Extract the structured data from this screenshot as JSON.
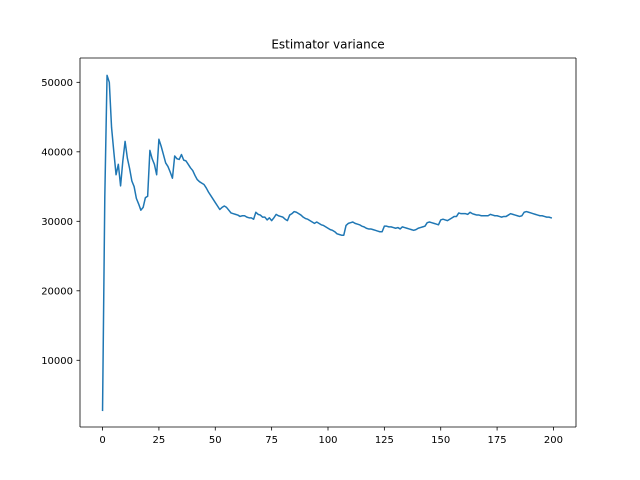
{
  "chart_data": {
    "type": "line",
    "title": "Estimator variance",
    "xlabel": "",
    "ylabel": "",
    "xlim": [
      -10,
      210
    ],
    "ylim": [
      400,
      53500
    ],
    "x_ticks": [
      0,
      25,
      50,
      75,
      100,
      125,
      150,
      175,
      200
    ],
    "x_tick_labels": [
      "0",
      "25",
      "50",
      "75",
      "100",
      "125",
      "150",
      "175",
      "200"
    ],
    "y_ticks": [
      10000,
      20000,
      30000,
      40000,
      50000
    ],
    "y_tick_labels": [
      "10000",
      "20000",
      "30000",
      "40000",
      "50000"
    ],
    "grid": false,
    "legend": "none",
    "series": [
      {
        "color": "#1f77b4",
        "x": [
          0,
          1,
          2,
          3,
          4,
          5,
          6,
          7,
          8,
          9,
          10,
          11,
          12,
          13,
          14,
          15,
          16,
          17,
          18,
          19,
          20,
          21,
          22,
          23,
          24,
          25,
          26,
          27,
          28,
          29,
          30,
          31,
          32,
          33,
          34,
          35,
          36,
          37,
          38,
          39,
          40,
          41,
          42,
          43,
          44,
          45,
          46,
          47,
          48,
          49,
          50,
          51,
          52,
          53,
          54,
          55,
          56,
          57,
          58,
          59,
          60,
          61,
          62,
          63,
          64,
          65,
          66,
          67,
          68,
          69,
          70,
          71,
          72,
          73,
          74,
          75,
          76,
          77,
          78,
          79,
          80,
          81,
          82,
          83,
          84,
          85,
          86,
          87,
          88,
          89,
          90,
          91,
          92,
          93,
          94,
          95,
          96,
          97,
          98,
          99,
          100,
          101,
          102,
          103,
          104,
          105,
          106,
          107,
          108,
          109,
          110,
          111,
          112,
          113,
          114,
          115,
          116,
          117,
          118,
          119,
          120,
          121,
          122,
          123,
          124,
          125,
          126,
          127,
          128,
          129,
          130,
          131,
          132,
          133,
          134,
          135,
          136,
          137,
          138,
          139,
          140,
          141,
          142,
          143,
          144,
          145,
          146,
          147,
          148,
          149,
          150,
          151,
          152,
          153,
          154,
          155,
          156,
          157,
          158,
          159,
          160,
          161,
          162,
          163,
          164,
          165,
          166,
          167,
          168,
          169,
          170,
          171,
          172,
          173,
          174,
          175,
          176,
          177,
          178,
          179,
          180,
          181,
          182,
          183,
          184,
          185,
          186,
          187,
          188,
          189,
          190,
          191,
          192,
          193,
          194,
          195,
          196,
          197,
          198,
          199
        ],
        "values": [
          2800,
          33500,
          51000,
          50000,
          43500,
          40000,
          36700,
          38200,
          35100,
          38700,
          41500,
          39100,
          37600,
          35800,
          35000,
          33300,
          32500,
          31600,
          32000,
          33400,
          33600,
          40200,
          39000,
          38200,
          36700,
          41800,
          40800,
          39600,
          38400,
          37900,
          37100,
          36200,
          39400,
          39000,
          38900,
          39600,
          38800,
          38700,
          38200,
          37700,
          37300,
          36600,
          36000,
          35700,
          35500,
          35300,
          34800,
          34200,
          33700,
          33200,
          32700,
          32200,
          31700,
          32000,
          32200,
          32000,
          31600,
          31200,
          31100,
          31000,
          30900,
          30700,
          30800,
          30800,
          30600,
          30500,
          30500,
          30300,
          31300,
          31000,
          30900,
          30600,
          30600,
          30200,
          30500,
          30100,
          30500,
          31000,
          30800,
          30700,
          30600,
          30300,
          30100,
          30900,
          31100,
          31400,
          31300,
          31100,
          30900,
          30600,
          30400,
          30300,
          30100,
          29900,
          29700,
          29900,
          29700,
          29500,
          29400,
          29200,
          29000,
          28800,
          28700,
          28500,
          28200,
          28100,
          28000,
          28000,
          29400,
          29700,
          29800,
          29900,
          29700,
          29600,
          29500,
          29300,
          29200,
          29000,
          28900,
          28900,
          28800,
          28700,
          28600,
          28500,
          28500,
          29300,
          29300,
          29200,
          29200,
          29100,
          29000,
          29100,
          28900,
          29200,
          29100,
          29000,
          28900,
          28800,
          28700,
          28800,
          29000,
          29100,
          29200,
          29300,
          29800,
          29900,
          29800,
          29700,
          29600,
          29500,
          30200,
          30300,
          30200,
          30100,
          30300,
          30500,
          30700,
          30700,
          31200,
          31100,
          31100,
          31100,
          31000,
          31300,
          31100,
          31000,
          30900,
          30900,
          30800,
          30800,
          30800,
          30800,
          31000,
          30900,
          30800,
          30800,
          30700,
          30600,
          30700,
          30700,
          30900,
          31100,
          31000,
          30900,
          30800,
          30700,
          30800,
          31300,
          31400,
          31300,
          31200,
          31100,
          31000,
          30900,
          30800,
          30800,
          30700,
          30600,
          30600,
          30500
        ]
      }
    ]
  }
}
